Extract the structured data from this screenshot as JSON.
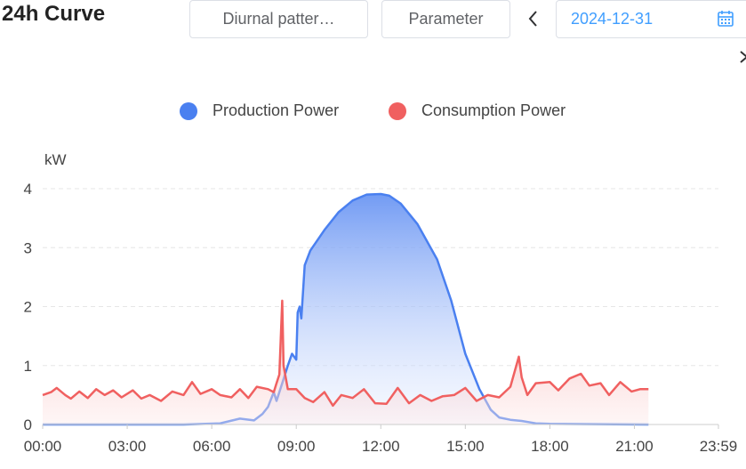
{
  "header": {
    "title": "24h Curve",
    "pattern_select": "Diurnal patter…",
    "parameter_button": "Parameter",
    "date": "2024-12-31"
  },
  "chart_data": {
    "type": "area",
    "unit": "kW",
    "ylim": [
      0,
      4
    ],
    "y_ticks": [
      "0",
      "1",
      "2",
      "3",
      "4"
    ],
    "x_range_hours": [
      0,
      23.983
    ],
    "x_ticks": [
      "00:00",
      "03:00",
      "06:00",
      "09:00",
      "12:00",
      "15:00",
      "18:00",
      "21:00",
      "23:59"
    ],
    "legend": "top-center",
    "series": [
      {
        "name": "Production Power",
        "color": "#4a80f0",
        "points": [
          [
            0,
            0
          ],
          [
            5,
            0
          ],
          [
            6.3,
            0.02
          ],
          [
            7,
            0.1
          ],
          [
            7.5,
            0.07
          ],
          [
            7.8,
            0.18
          ],
          [
            8.0,
            0.3
          ],
          [
            8.2,
            0.55
          ],
          [
            8.3,
            0.4
          ],
          [
            8.5,
            0.7
          ],
          [
            8.7,
            1.0
          ],
          [
            8.85,
            1.2
          ],
          [
            9.0,
            1.1
          ],
          [
            9.05,
            1.9
          ],
          [
            9.12,
            2.0
          ],
          [
            9.18,
            1.8
          ],
          [
            9.3,
            2.7
          ],
          [
            9.5,
            2.95
          ],
          [
            10.0,
            3.3
          ],
          [
            10.5,
            3.6
          ],
          [
            11.0,
            3.8
          ],
          [
            11.5,
            3.9
          ],
          [
            12.0,
            3.91
          ],
          [
            12.3,
            3.88
          ],
          [
            12.7,
            3.75
          ],
          [
            13.3,
            3.4
          ],
          [
            14.0,
            2.8
          ],
          [
            14.5,
            2.1
          ],
          [
            15.0,
            1.2
          ],
          [
            15.5,
            0.6
          ],
          [
            15.9,
            0.25
          ],
          [
            16.2,
            0.12
          ],
          [
            16.6,
            0.08
          ],
          [
            17.0,
            0.06
          ],
          [
            17.5,
            0.02
          ],
          [
            18.0,
            0.01
          ],
          [
            21.5,
            0
          ]
        ]
      },
      {
        "name": "Consumption Power",
        "color": "#f06060",
        "points": [
          [
            0,
            0.5
          ],
          [
            0.3,
            0.55
          ],
          [
            0.5,
            0.62
          ],
          [
            0.8,
            0.5
          ],
          [
            1.0,
            0.44
          ],
          [
            1.3,
            0.56
          ],
          [
            1.6,
            0.45
          ],
          [
            1.9,
            0.6
          ],
          [
            2.2,
            0.5
          ],
          [
            2.5,
            0.58
          ],
          [
            2.8,
            0.46
          ],
          [
            3.2,
            0.58
          ],
          [
            3.5,
            0.44
          ],
          [
            3.8,
            0.5
          ],
          [
            4.2,
            0.4
          ],
          [
            4.6,
            0.56
          ],
          [
            5.0,
            0.5
          ],
          [
            5.3,
            0.72
          ],
          [
            5.6,
            0.52
          ],
          [
            6.0,
            0.6
          ],
          [
            6.3,
            0.5
          ],
          [
            6.7,
            0.46
          ],
          [
            7.0,
            0.6
          ],
          [
            7.3,
            0.45
          ],
          [
            7.6,
            0.64
          ],
          [
            8.0,
            0.6
          ],
          [
            8.2,
            0.55
          ],
          [
            8.3,
            0.7
          ],
          [
            8.4,
            0.85
          ],
          [
            8.5,
            2.1
          ],
          [
            8.55,
            1.0
          ],
          [
            8.7,
            0.6
          ],
          [
            9.0,
            0.6
          ],
          [
            9.3,
            0.45
          ],
          [
            9.6,
            0.38
          ],
          [
            10.0,
            0.55
          ],
          [
            10.3,
            0.32
          ],
          [
            10.6,
            0.5
          ],
          [
            11.0,
            0.45
          ],
          [
            11.4,
            0.6
          ],
          [
            11.8,
            0.36
          ],
          [
            12.2,
            0.35
          ],
          [
            12.6,
            0.62
          ],
          [
            13.0,
            0.36
          ],
          [
            13.4,
            0.5
          ],
          [
            13.8,
            0.4
          ],
          [
            14.2,
            0.48
          ],
          [
            14.6,
            0.5
          ],
          [
            15.0,
            0.62
          ],
          [
            15.4,
            0.4
          ],
          [
            15.8,
            0.5
          ],
          [
            16.2,
            0.46
          ],
          [
            16.6,
            0.64
          ],
          [
            16.9,
            1.15
          ],
          [
            17.0,
            0.8
          ],
          [
            17.2,
            0.5
          ],
          [
            17.5,
            0.7
          ],
          [
            18.0,
            0.72
          ],
          [
            18.3,
            0.58
          ],
          [
            18.7,
            0.78
          ],
          [
            19.1,
            0.86
          ],
          [
            19.4,
            0.66
          ],
          [
            19.8,
            0.7
          ],
          [
            20.1,
            0.5
          ],
          [
            20.5,
            0.72
          ],
          [
            20.9,
            0.56
          ],
          [
            21.2,
            0.6
          ],
          [
            21.5,
            0.6
          ]
        ]
      }
    ]
  }
}
